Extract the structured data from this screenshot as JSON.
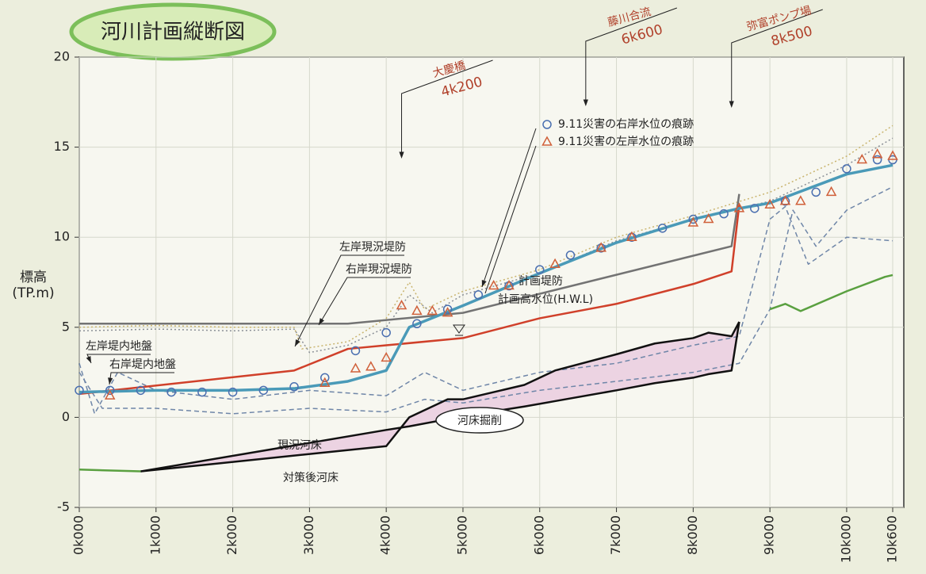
{
  "chart_data": {
    "type": "line",
    "title": "河川計画縦断図",
    "ylabel": [
      "標高",
      "(TP.m)"
    ],
    "xlim": [
      0,
      10.6
    ],
    "ylim": [
      -5,
      20
    ],
    "yticks": [
      -5,
      0,
      5,
      10,
      15,
      20
    ],
    "xticks": [
      {
        "value": 0,
        "label": "0k000"
      },
      {
        "value": 1,
        "label": "1k000"
      },
      {
        "value": 2,
        "label": "2k000"
      },
      {
        "value": 3,
        "label": "3k000"
      },
      {
        "value": 4,
        "label": "4k000"
      },
      {
        "value": 5,
        "label": "5k000"
      },
      {
        "value": 6,
        "label": "6k000"
      },
      {
        "value": 7,
        "label": "7k000"
      },
      {
        "value": 8,
        "label": "8k000"
      },
      {
        "value": 9,
        "label": "9k000"
      },
      {
        "value": 10,
        "label": "10k000"
      },
      {
        "value": 10.6,
        "label": "10k600"
      }
    ],
    "grid": true,
    "landmarks": [
      {
        "name": "大慶橋",
        "label": "4k200",
        "x": 4.2
      },
      {
        "name": "藤川合流",
        "label": "6k600",
        "x": 6.6
      },
      {
        "name": "弥富ポンプ場",
        "label": "8k500",
        "x": 8.5
      }
    ],
    "fill_label": "河床掘削",
    "series": [
      {
        "name": "左岸現況堤防",
        "type": "line",
        "style": "dotted",
        "color": "#c9b46e",
        "x": [
          0,
          1,
          2,
          2.8,
          2.9,
          3.5,
          4.0,
          4.3,
          4.5,
          5.0,
          6.0,
          7.0,
          8.0,
          9.0,
          10.0,
          10.6
        ],
        "values": [
          5.0,
          5.1,
          5.0,
          5.0,
          3.8,
          4.2,
          5.5,
          7.5,
          6.0,
          7.0,
          8.2,
          10.0,
          11.2,
          12.5,
          14.5,
          16.2
        ]
      },
      {
        "name": "右岸現況堤防",
        "type": "line",
        "style": "dotted",
        "color": "#8a8f96",
        "x": [
          0,
          1,
          2,
          2.8,
          3.0,
          3.5,
          4.0,
          4.3,
          4.6,
          5.0,
          6.0,
          7.0,
          8.0,
          9.0,
          10.0,
          10.6
        ],
        "values": [
          4.8,
          4.9,
          4.8,
          4.9,
          3.6,
          4.0,
          5.0,
          6.8,
          5.8,
          6.8,
          8.0,
          9.8,
          11.0,
          12.0,
          14.0,
          15.5
        ]
      },
      {
        "name": "左岸堤内地盤",
        "type": "line",
        "style": "dashed",
        "color": "#6f86a8",
        "x": [
          0,
          0.2,
          0.5,
          1.0,
          2.0,
          3.0,
          4.0,
          4.5,
          5.0,
          6.0,
          7.0,
          8.0,
          8.6,
          9.0,
          9.2,
          9.5,
          10.0,
          10.6
        ],
        "values": [
          3.0,
          0.2,
          2.5,
          1.5,
          1.0,
          1.5,
          1.2,
          2.5,
          1.5,
          2.5,
          3.0,
          4.0,
          4.5,
          11.0,
          11.7,
          8.5,
          10.0,
          9.8
        ]
      },
      {
        "name": "右岸堤内地盤",
        "type": "line",
        "style": "dashed",
        "color": "#6f86a8",
        "x": [
          0,
          0.3,
          1.0,
          2.0,
          3.0,
          4.0,
          4.5,
          5.0,
          6.0,
          7.0,
          8.0,
          8.6,
          9.0,
          9.3,
          9.6,
          10.0,
          10.6
        ],
        "values": [
          2.5,
          0.5,
          0.5,
          0.2,
          0.5,
          0.3,
          1.0,
          0.8,
          1.5,
          2.0,
          2.5,
          3.0,
          6.0,
          11.5,
          9.5,
          11.5,
          12.8
        ]
      },
      {
        "name": "計画堤防",
        "type": "line",
        "style": "solid",
        "color": "#737373",
        "x": [
          0,
          3.5,
          5.0,
          8.5,
          8.6
        ],
        "values": [
          5.2,
          5.2,
          5.8,
          9.5,
          12.4
        ]
      },
      {
        "name": "計画高水位(H.W.L)",
        "type": "line",
        "style": "solid",
        "color": "#d0402a",
        "x": [
          0,
          2.8,
          3.5,
          4.0,
          5.0,
          6.0,
          7.0,
          8.0,
          8.5,
          8.6
        ],
        "values": [
          1.3,
          2.6,
          3.8,
          4.0,
          4.4,
          5.5,
          6.3,
          7.4,
          8.1,
          11.8
        ]
      },
      {
        "name": "現況河床",
        "type": "line",
        "style": "solid",
        "color": "#111111",
        "x": [
          0.8,
          4.0,
          4.3,
          4.8,
          5.0,
          5.5,
          5.8,
          6.2,
          7.0,
          7.5,
          8.0,
          8.2,
          8.5,
          8.6
        ],
        "values": [
          -3.0,
          -1.6,
          0.0,
          1.0,
          1.0,
          1.5,
          1.8,
          2.6,
          3.5,
          4.1,
          4.4,
          4.7,
          4.5,
          5.3
        ]
      },
      {
        "name": "対策後河床",
        "type": "line",
        "style": "solid",
        "color": "#111111",
        "x": [
          0.8,
          4.0,
          4.3,
          4.8,
          5.0,
          5.5,
          5.8,
          6.2,
          7.0,
          7.5,
          8.0,
          8.2,
          8.5,
          8.6
        ],
        "values": [
          -3.0,
          -0.7,
          -0.5,
          -0.1,
          0.1,
          0.4,
          0.6,
          0.9,
          1.5,
          1.9,
          2.2,
          2.4,
          2.6,
          5.3
        ]
      },
      {
        "type": "line",
        "style": "solid",
        "color": "#5aa040",
        "x": [
          0,
          0.8,
          8.7,
          9.0,
          9.2,
          9.4,
          10.0,
          10.5,
          10.6
        ],
        "values": [
          -2.9,
          -3.0,
          null,
          6.0,
          6.3,
          5.9,
          7.0,
          7.8,
          7.9
        ]
      },
      {
        "type": "line",
        "style": "solid",
        "color": "#4a9ab8",
        "x": [
          0,
          1,
          2,
          2.8,
          3.5,
          4.0,
          4.3,
          5.0,
          6.0,
          7.0,
          8.0,
          8.6,
          9.0,
          10.0,
          10.6
        ],
        "values": [
          1.4,
          1.5,
          1.5,
          1.6,
          2.0,
          2.6,
          5.0,
          6.2,
          8.0,
          9.7,
          11.0,
          11.6,
          11.9,
          13.5,
          14.0
        ]
      },
      {
        "name": "9.11災害の右岸水位の痕跡",
        "type": "scatter",
        "marker": "circle",
        "color": "#4a6fb0",
        "x": [
          0.0,
          0.4,
          0.8,
          1.2,
          1.6,
          2.0,
          2.4,
          2.8,
          3.2,
          3.6,
          4.0,
          4.4,
          4.8,
          5.2,
          5.6,
          6.0,
          6.4,
          6.8,
          7.2,
          7.6,
          8.0,
          8.4,
          8.8,
          9.2,
          9.6,
          10.0,
          10.4,
          10.6
        ],
        "values": [
          1.5,
          1.5,
          1.5,
          1.4,
          1.4,
          1.4,
          1.5,
          1.7,
          2.2,
          3.7,
          4.7,
          5.2,
          6.0,
          6.8,
          7.3,
          8.2,
          9.0,
          9.4,
          10.0,
          10.5,
          11.0,
          11.3,
          11.6,
          12.0,
          12.5,
          13.8,
          14.3,
          14.3
        ]
      },
      {
        "name": "9.11災害の左岸水位の痕跡",
        "type": "scatter",
        "marker": "triangle",
        "color": "#d0603a",
        "x": [
          0.4,
          3.2,
          3.6,
          3.8,
          4.0,
          4.2,
          4.4,
          4.6,
          4.8,
          5.4,
          5.6,
          6.2,
          6.8,
          7.2,
          8.0,
          8.2,
          8.6,
          9.0,
          9.2,
          9.4,
          9.8,
          10.2,
          10.4,
          10.6
        ],
        "values": [
          1.2,
          1.9,
          2.7,
          2.8,
          3.3,
          6.2,
          5.9,
          5.9,
          5.8,
          7.3,
          7.3,
          8.5,
          9.4,
          10.0,
          10.8,
          11.0,
          11.6,
          11.8,
          12.0,
          12.0,
          12.5,
          14.3,
          14.6,
          14.5
        ]
      }
    ]
  }
}
